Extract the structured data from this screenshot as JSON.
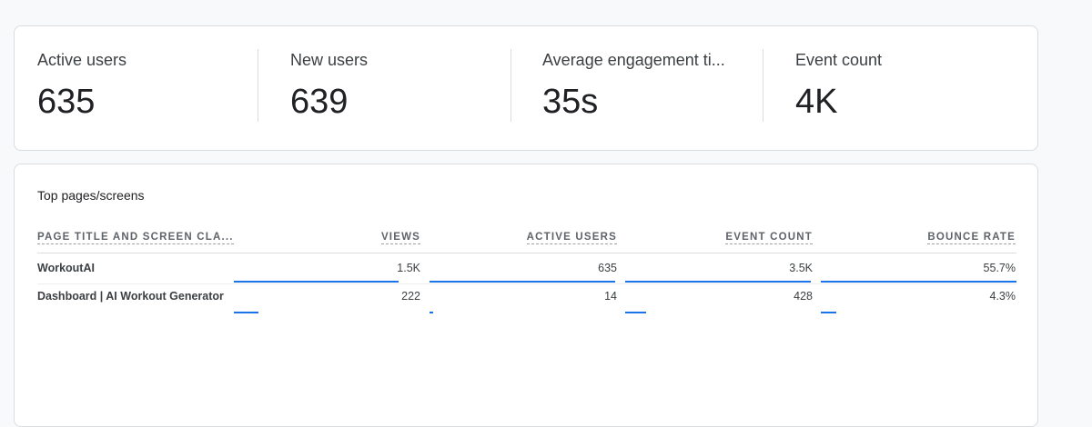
{
  "metrics": [
    {
      "label": "Active users",
      "value": "635"
    },
    {
      "label": "New users",
      "value": "639"
    },
    {
      "label": "Average engagement ti...",
      "value": "35s"
    },
    {
      "label": "Event count",
      "value": "4K"
    }
  ],
  "table": {
    "title": "Top pages/screens",
    "columns": [
      "PAGE TITLE AND SCREEN CLA...",
      "VIEWS",
      "ACTIVE USERS",
      "EVENT COUNT",
      "BOUNCE RATE"
    ],
    "rows": [
      {
        "title": "WorkoutAI",
        "views": "1.5K",
        "active_users": "635",
        "event_count": "3.5K",
        "bounce_rate": "55.7%",
        "fractions": {
          "views": 0.87,
          "active_users": 0.98,
          "event_count": 0.98,
          "bounce_rate": 1.0
        }
      },
      {
        "title": "Dashboard | AI Workout Generator",
        "views": "222",
        "active_users": "14",
        "event_count": "428",
        "bounce_rate": "4.3%",
        "fractions": {
          "views": 0.13,
          "active_users": 0.02,
          "event_count": 0.11,
          "bounce_rate": 0.08
        }
      }
    ]
  },
  "colors": {
    "bar": "#1a73e8",
    "border": "#dadce0"
  }
}
